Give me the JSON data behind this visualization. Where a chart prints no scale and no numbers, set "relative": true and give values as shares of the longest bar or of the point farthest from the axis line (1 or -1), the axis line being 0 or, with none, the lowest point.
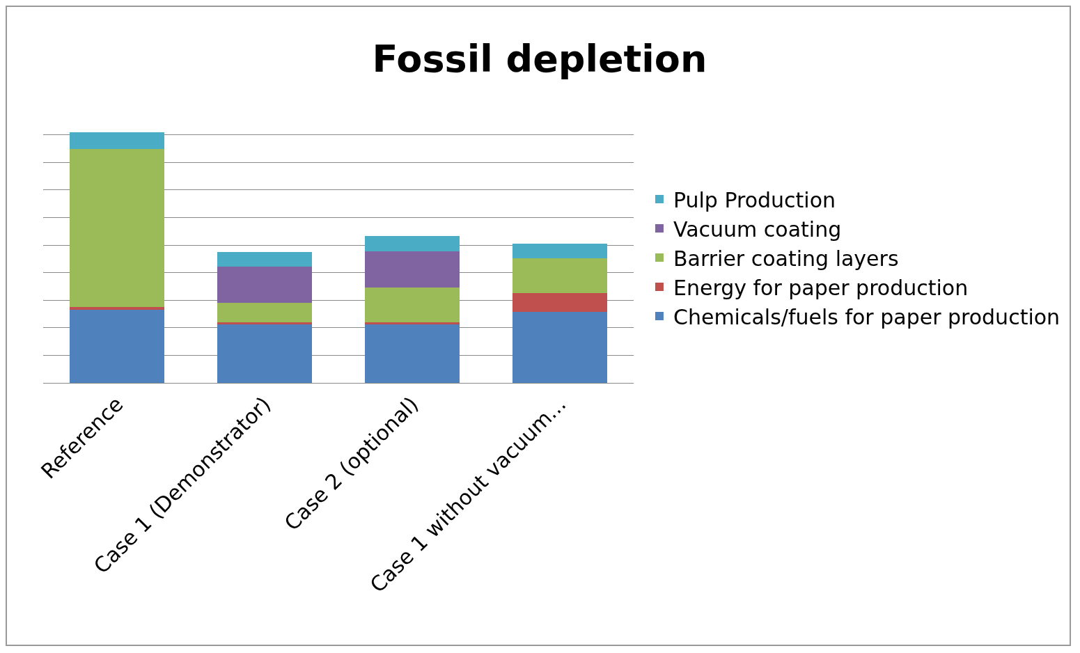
{
  "chart_data": {
    "type": "bar",
    "title": "Fossil depletion",
    "categories": [
      "Reference",
      "Case 1 (Demonstrator)",
      "Case 2 (optional)",
      "Case 1 without vacuum..."
    ],
    "stacked": true,
    "relative": true,
    "grid": "y",
    "legend": "right",
    "series": [
      {
        "name": "Chemicals/fuels for paper production",
        "color": "#4f81bd",
        "values": [
          0.292,
          0.234,
          0.234,
          0.284
        ]
      },
      {
        "name": "Energy for paper production",
        "color": "#c0504d",
        "values": [
          0.012,
          0.009,
          0.009,
          0.073
        ]
      },
      {
        "name": "Barrier coating layers",
        "color": "#9bbb59",
        "values": [
          0.629,
          0.076,
          0.137,
          0.14
        ]
      },
      {
        "name": "Vacuum coating",
        "color": "#8064a2",
        "values": [
          0,
          0.146,
          0.146,
          0
        ]
      },
      {
        "name": "Pulp Production",
        "color": "#4bacc6",
        "values": [
          0.067,
          0.056,
          0.061,
          0.058
        ]
      }
    ]
  }
}
